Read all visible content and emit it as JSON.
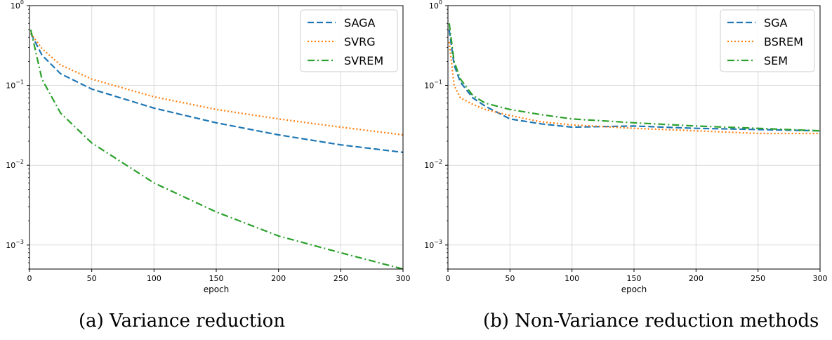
{
  "colors": {
    "blue": "#1f77b4",
    "orange": "#ff7f0e",
    "green": "#2ca02c",
    "grid": "#d9d9d9"
  },
  "chart_data": [
    {
      "type": "line",
      "caption": "(a) Variance reduction",
      "xlabel": "epoch",
      "ylabel": "",
      "xlim": [
        0,
        300
      ],
      "ylim": [
        0.0005,
        1
      ],
      "yscale": "log",
      "xticks": [
        0,
        50,
        100,
        150,
        200,
        250,
        300
      ],
      "ytick_labels": [
        {
          "base": "10",
          "exp": "0"
        },
        {
          "base": "10",
          "exp": "−1"
        },
        {
          "base": "10",
          "exp": "−2"
        },
        {
          "base": "10",
          "exp": "−3"
        }
      ],
      "grid": true,
      "legend_position": "top-right",
      "x": [
        1,
        10,
        25,
        50,
        100,
        150,
        200,
        250,
        300
      ],
      "series": [
        {
          "name": "SAGA",
          "color": "#1f77b4",
          "style": "dashed",
          "values": [
            0.45,
            0.24,
            0.14,
            0.09,
            0.052,
            0.034,
            0.024,
            0.018,
            0.0145
          ]
        },
        {
          "name": "SVRG",
          "color": "#ff7f0e",
          "style": "dotted",
          "values": [
            0.45,
            0.29,
            0.18,
            0.12,
            0.072,
            0.05,
            0.038,
            0.03,
            0.024
          ]
        },
        {
          "name": "SVREM",
          "color": "#2ca02c",
          "style": "dashdot",
          "values": [
            0.5,
            0.12,
            0.045,
            0.019,
            0.006,
            0.0026,
            0.0013,
            0.0008,
            0.0005
          ]
        }
      ]
    },
    {
      "type": "line",
      "caption": "(b) Non-Variance reduction methods",
      "xlabel": "epoch",
      "ylabel": "",
      "xlim": [
        0,
        300
      ],
      "ylim": [
        0.0005,
        1
      ],
      "yscale": "log",
      "xticks": [
        0,
        50,
        100,
        150,
        200,
        250,
        300
      ],
      "ytick_labels": [
        {
          "base": "10",
          "exp": "0"
        },
        {
          "base": "10",
          "exp": "−1"
        },
        {
          "base": "10",
          "exp": "−2"
        },
        {
          "base": "10",
          "exp": "−3"
        }
      ],
      "grid": true,
      "legend_position": "top-right",
      "x": [
        1,
        5,
        10,
        20,
        30,
        50,
        75,
        100,
        150,
        200,
        250,
        300
      ],
      "series": [
        {
          "name": "SGA",
          "color": "#1f77b4",
          "style": "dashed",
          "values": [
            0.5,
            0.18,
            0.11,
            0.07,
            0.055,
            0.038,
            0.033,
            0.03,
            0.031,
            0.029,
            0.028,
            0.027
          ]
        },
        {
          "name": "BSREM",
          "color": "#ff7f0e",
          "style": "dotted",
          "values": [
            0.35,
            0.1,
            0.07,
            0.058,
            0.05,
            0.042,
            0.035,
            0.032,
            0.029,
            0.027,
            0.025,
            0.025
          ]
        },
        {
          "name": "SEM",
          "color": "#2ca02c",
          "style": "dashdot",
          "values": [
            0.6,
            0.2,
            0.12,
            0.075,
            0.06,
            0.05,
            0.043,
            0.038,
            0.034,
            0.031,
            0.029,
            0.027
          ]
        }
      ]
    }
  ]
}
